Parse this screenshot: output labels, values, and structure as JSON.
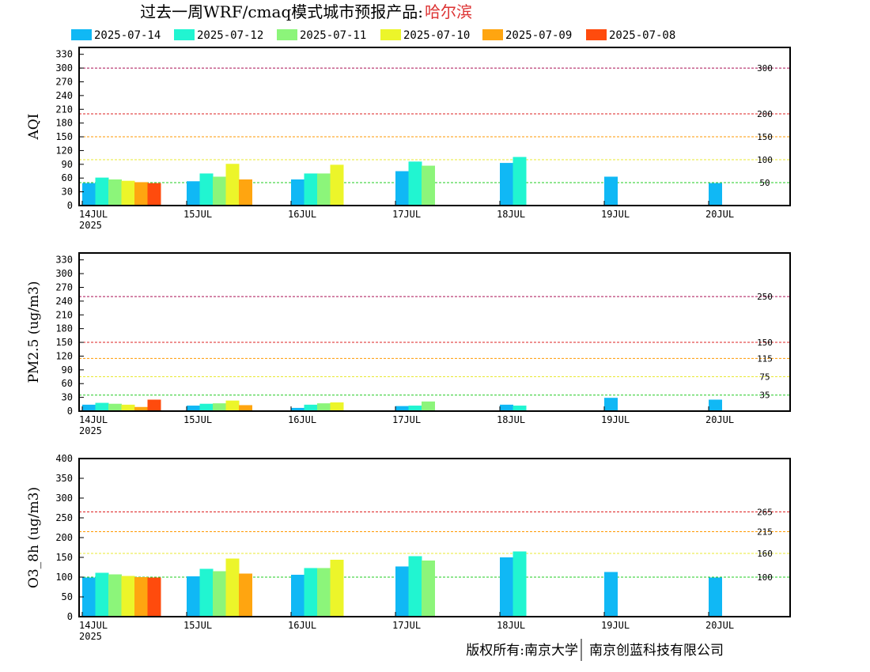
{
  "page": {
    "title_prefix": "过去一周WRF/cmaq模式城市预报产品:",
    "city": "哈尔滨",
    "credit_left": "版权所有:南京大学",
    "credit_right": "南京创蓝科技有限公司"
  },
  "legend": [
    {
      "label": "2025-07-14",
      "color": "#10b8f5"
    },
    {
      "label": "2025-07-12",
      "color": "#21f5d1"
    },
    {
      "label": "2025-07-11",
      "color": "#8cf57a"
    },
    {
      "label": "2025-07-10",
      "color": "#ecf52a"
    },
    {
      "label": "2025-07-09",
      "color": "#ffa510"
    },
    {
      "label": "2025-07-08",
      "color": "#ff4b0d"
    }
  ],
  "colors": {
    "threshold_green": "#22cc22",
    "threshold_yellow": "#e8e830",
    "threshold_orange": "#ff9900",
    "threshold_red": "#dd2222",
    "threshold_purple": "#aa1155",
    "city": "#dd3333"
  },
  "chart_data": [
    {
      "type": "bar",
      "ylabel": "AQI",
      "ylim": [
        0,
        345
      ],
      "yticks": [
        0,
        30,
        60,
        90,
        120,
        150,
        180,
        210,
        240,
        270,
        300,
        330
      ],
      "xlabels": [
        "14JUL",
        "15JUL",
        "16JUL",
        "17JUL",
        "18JUL",
        "19JUL",
        "20JUL"
      ],
      "year_label": "2025",
      "thresholds": [
        {
          "value": 50,
          "label": "50",
          "color": "green"
        },
        {
          "value": 100,
          "label": "100",
          "color": "yellow"
        },
        {
          "value": 150,
          "label": "150",
          "color": "orange"
        },
        {
          "value": 200,
          "label": "200",
          "color": "red"
        },
        {
          "value": 300,
          "label": "300",
          "color": "purple"
        }
      ],
      "days": [
        [
          49,
          61,
          57,
          54,
          51,
          49
        ],
        [
          53,
          70,
          63,
          91,
          57
        ],
        [
          57,
          70,
          70,
          89
        ],
        [
          75,
          96,
          87
        ],
        [
          93,
          106
        ],
        [
          63
        ],
        [
          49
        ]
      ]
    },
    {
      "type": "bar",
      "ylabel": "PM2.5 (ug/m3)",
      "ylim": [
        0,
        345
      ],
      "yticks": [
        0,
        30,
        60,
        90,
        120,
        150,
        180,
        210,
        240,
        270,
        300,
        330
      ],
      "xlabels": [
        "14JUL",
        "15JUL",
        "16JUL",
        "17JUL",
        "18JUL",
        "19JUL",
        "20JUL"
      ],
      "year_label": "2025",
      "thresholds": [
        {
          "value": 35,
          "label": "35",
          "color": "green"
        },
        {
          "value": 75,
          "label": "75",
          "color": "yellow"
        },
        {
          "value": 115,
          "label": "115",
          "color": "orange"
        },
        {
          "value": 150,
          "label": "150",
          "color": "red"
        },
        {
          "value": 250,
          "label": "250",
          "color": "purple"
        }
      ],
      "days": [
        [
          14,
          18,
          16,
          14,
          9,
          25
        ],
        [
          12,
          16,
          17,
          23,
          13
        ],
        [
          7,
          14,
          17,
          19
        ],
        [
          11,
          12,
          21
        ],
        [
          14,
          12
        ],
        [
          29
        ],
        [
          25
        ]
      ]
    },
    {
      "type": "bar",
      "ylabel": "O3_8h (ug/m3)",
      "ylim": [
        0,
        400
      ],
      "yticks": [
        0,
        50,
        100,
        150,
        200,
        250,
        300,
        350,
        400
      ],
      "xlabels": [
        "14JUL",
        "15JUL",
        "16JUL",
        "17JUL",
        "18JUL",
        "19JUL",
        "20JUL"
      ],
      "year_label": "2025",
      "thresholds": [
        {
          "value": 100,
          "label": "100",
          "color": "green"
        },
        {
          "value": 160,
          "label": "160",
          "color": "yellow"
        },
        {
          "value": 215,
          "label": "215",
          "color": "orange"
        },
        {
          "value": 265,
          "label": "265",
          "color": "red"
        }
      ],
      "days": [
        [
          99,
          111,
          107,
          103,
          100,
          99
        ],
        [
          102,
          121,
          115,
          147,
          109
        ],
        [
          106,
          123,
          123,
          144
        ],
        [
          127,
          153,
          142
        ],
        [
          150,
          165
        ],
        [
          113
        ],
        [
          99
        ]
      ]
    }
  ]
}
